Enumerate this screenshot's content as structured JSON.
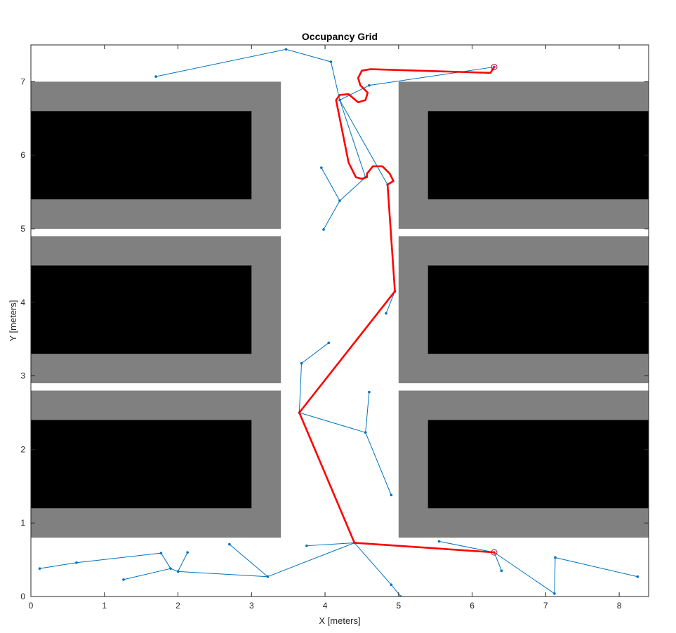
{
  "chart_data": {
    "type": "occupancy-grid-path-plot",
    "title": "Occupancy Grid",
    "xlabel": "X [meters]",
    "ylabel": "Y [meters]",
    "xlim": [
      0,
      8.4
    ],
    "ylim": [
      0,
      7.5
    ],
    "xticks": [
      0,
      1,
      2,
      3,
      4,
      5,
      6,
      7,
      8
    ],
    "yticks": [
      0,
      1,
      2,
      3,
      4,
      5,
      6,
      7
    ],
    "grid": false,
    "colors": {
      "inflated": "#808080",
      "occupied": "#000000",
      "free": "#ffffff",
      "tree": "#0072BD",
      "path": "#FF0000",
      "markers": "#A2142F"
    },
    "inflated_zones": [
      {
        "x": [
          0,
          3.4
        ],
        "y": [
          5.0,
          7.0
        ]
      },
      {
        "x": [
          0,
          3.4
        ],
        "y": [
          2.9,
          4.9
        ]
      },
      {
        "x": [
          0,
          3.4
        ],
        "y": [
          0.8,
          2.8
        ]
      },
      {
        "x": [
          5.0,
          8.4
        ],
        "y": [
          5.0,
          7.0
        ]
      },
      {
        "x": [
          5.0,
          8.4
        ],
        "y": [
          2.9,
          4.9
        ]
      },
      {
        "x": [
          5.0,
          8.4
        ],
        "y": [
          0.8,
          2.8
        ]
      }
    ],
    "obstacles": [
      {
        "x": [
          0,
          3.0
        ],
        "y": [
          5.4,
          6.6
        ]
      },
      {
        "x": [
          0,
          3.0
        ],
        "y": [
          3.3,
          4.5
        ]
      },
      {
        "x": [
          0,
          3.0
        ],
        "y": [
          1.2,
          2.4
        ]
      },
      {
        "x": [
          5.4,
          8.4
        ],
        "y": [
          5.4,
          6.6
        ]
      },
      {
        "x": [
          5.4,
          8.4
        ],
        "y": [
          3.3,
          4.5
        ]
      },
      {
        "x": [
          5.4,
          8.4
        ],
        "y": [
          1.2,
          2.4
        ]
      }
    ],
    "tree_edges": [
      [
        [
          6.3,
          0.6
        ],
        [
          4.4,
          0.73
        ]
      ],
      [
        [
          6.3,
          0.6
        ],
        [
          5.55,
          0.75
        ]
      ],
      [
        [
          6.3,
          0.6
        ],
        [
          6.4,
          0.35
        ]
      ],
      [
        [
          6.3,
          0.6
        ],
        [
          7.12,
          0.04
        ]
      ],
      [
        [
          7.12,
          0.04
        ],
        [
          7.13,
          0.53
        ]
      ],
      [
        [
          7.13,
          0.53
        ],
        [
          8.25,
          0.27
        ]
      ],
      [
        [
          4.4,
          0.73
        ],
        [
          3.75,
          0.69
        ]
      ],
      [
        [
          4.4,
          0.73
        ],
        [
          4.9,
          0.16
        ]
      ],
      [
        [
          4.9,
          0.16
        ],
        [
          5.03,
          0.0
        ]
      ],
      [
        [
          4.4,
          0.73
        ],
        [
          3.22,
          0.27
        ]
      ],
      [
        [
          3.22,
          0.27
        ],
        [
          2.7,
          0.71
        ]
      ],
      [
        [
          3.22,
          0.27
        ],
        [
          2.0,
          0.34
        ]
      ],
      [
        [
          2.0,
          0.34
        ],
        [
          2.13,
          0.6
        ]
      ],
      [
        [
          2.0,
          0.34
        ],
        [
          1.9,
          0.38
        ]
      ],
      [
        [
          1.9,
          0.38
        ],
        [
          1.77,
          0.59
        ]
      ],
      [
        [
          1.77,
          0.59
        ],
        [
          0.62,
          0.46
        ]
      ],
      [
        [
          0.62,
          0.46
        ],
        [
          0.12,
          0.38
        ]
      ],
      [
        [
          1.9,
          0.38
        ],
        [
          1.26,
          0.23
        ]
      ],
      [
        [
          4.4,
          0.73
        ],
        [
          3.65,
          2.5
        ]
      ],
      [
        [
          3.65,
          2.5
        ],
        [
          3.68,
          3.17
        ]
      ],
      [
        [
          3.68,
          3.17
        ],
        [
          4.05,
          3.45
        ]
      ],
      [
        [
          3.65,
          2.5
        ],
        [
          4.55,
          2.23
        ]
      ],
      [
        [
          4.55,
          2.23
        ],
        [
          4.6,
          2.78
        ]
      ],
      [
        [
          4.55,
          2.23
        ],
        [
          4.9,
          1.38
        ]
      ],
      [
        [
          3.65,
          2.5
        ],
        [
          4.95,
          4.15
        ]
      ],
      [
        [
          4.95,
          4.15
        ],
        [
          4.83,
          3.85
        ]
      ],
      [
        [
          4.95,
          4.15
        ],
        [
          4.85,
          5.6
        ]
      ],
      [
        [
          4.85,
          5.6
        ],
        [
          4.2,
          6.75
        ]
      ],
      [
        [
          4.2,
          6.75
        ],
        [
          4.55,
          5.7
        ]
      ],
      [
        [
          4.55,
          5.7
        ],
        [
          4.2,
          5.38
        ]
      ],
      [
        [
          4.2,
          5.38
        ],
        [
          3.95,
          5.83
        ]
      ],
      [
        [
          4.2,
          5.38
        ],
        [
          3.98,
          4.99
        ]
      ],
      [
        [
          4.2,
          6.75
        ],
        [
          4.08,
          7.27
        ]
      ],
      [
        [
          4.08,
          7.27
        ],
        [
          3.47,
          7.44
        ]
      ],
      [
        [
          3.47,
          7.44
        ],
        [
          1.7,
          7.07
        ]
      ],
      [
        [
          4.2,
          6.75
        ],
        [
          4.6,
          6.95
        ]
      ],
      [
        [
          4.6,
          6.95
        ],
        [
          6.3,
          7.2
        ]
      ]
    ],
    "path": [
      [
        6.3,
        0.6
      ],
      [
        4.4,
        0.73
      ],
      [
        3.65,
        2.5
      ],
      [
        4.95,
        4.15
      ],
      [
        4.85,
        5.6
      ],
      [
        4.93,
        5.65
      ],
      [
        4.88,
        5.75
      ],
      [
        4.78,
        5.85
      ],
      [
        4.65,
        5.85
      ],
      [
        4.57,
        5.75
      ],
      [
        4.57,
        5.7
      ],
      [
        4.5,
        5.68
      ],
      [
        4.42,
        5.7
      ],
      [
        4.32,
        5.9
      ],
      [
        4.15,
        6.75
      ],
      [
        4.2,
        6.82
      ],
      [
        4.32,
        6.83
      ],
      [
        4.45,
        6.72
      ],
      [
        4.55,
        6.75
      ],
      [
        4.58,
        6.85
      ],
      [
        4.48,
        6.95
      ],
      [
        4.45,
        7.05
      ],
      [
        4.5,
        7.15
      ],
      [
        4.62,
        7.17
      ],
      [
        6.25,
        7.12
      ],
      [
        6.3,
        7.2
      ]
    ],
    "start": [
      6.3,
      0.6
    ],
    "goal": [
      6.3,
      7.2
    ]
  }
}
